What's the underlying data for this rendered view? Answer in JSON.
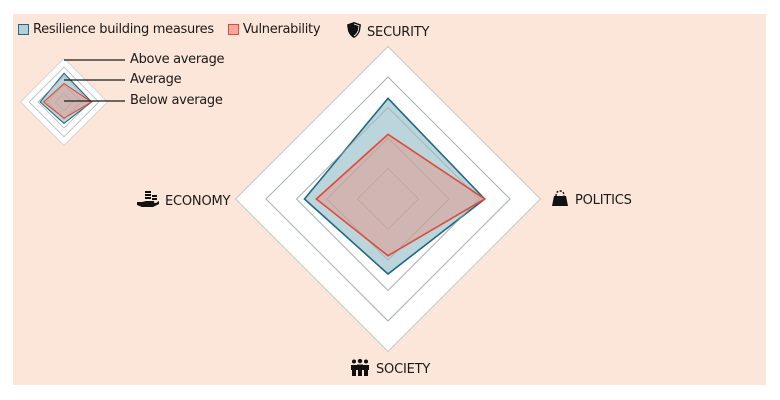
{
  "legend": {
    "items": [
      {
        "label": "Resilience building measures",
        "fill": "#b3d0d8",
        "stroke": "#1f6a80"
      },
      {
        "label": "Vulnerability",
        "fill": "#f3a89c",
        "stroke": "#e04a3a"
      }
    ]
  },
  "key": {
    "above": "Above average",
    "average": "Average",
    "below": "Below average"
  },
  "axes": {
    "security": {
      "label": "SECURITY",
      "icon": "shield-icon"
    },
    "politics": {
      "label": "POLITICS",
      "icon": "handbag-icon"
    },
    "society": {
      "label": "SOCIETY",
      "icon": "people-icon"
    },
    "economy": {
      "label": "ECONOMY",
      "icon": "coins-hand-icon"
    }
  },
  "colors": {
    "background": "#fbe6d9",
    "ring_fill": "#ffffff",
    "ring_stroke": "#c8c8c8",
    "resilience_fill": "#b3d0d8",
    "resilience_stroke": "#1f6a80",
    "vulnerability_fill": "#d2a49f",
    "vulnerability_stroke": "#e04a3a"
  },
  "chart_data": {
    "type": "radar",
    "title": "",
    "axes": [
      "SECURITY",
      "POLITICS",
      "SOCIETY",
      "ECONOMY"
    ],
    "scale": {
      "min": 0,
      "max": 5,
      "rings": 5
    },
    "series": [
      {
        "name": "Resilience building measures",
        "values": [
          3.3,
          3.17,
          2.46,
          2.74
        ]
      },
      {
        "name": "Vulnerability",
        "values": [
          2.12,
          3.17,
          1.86,
          2.35
        ]
      }
    ],
    "key_levels": [
      "Above average",
      "Average",
      "Below average"
    ],
    "legend_position": "top-left"
  }
}
